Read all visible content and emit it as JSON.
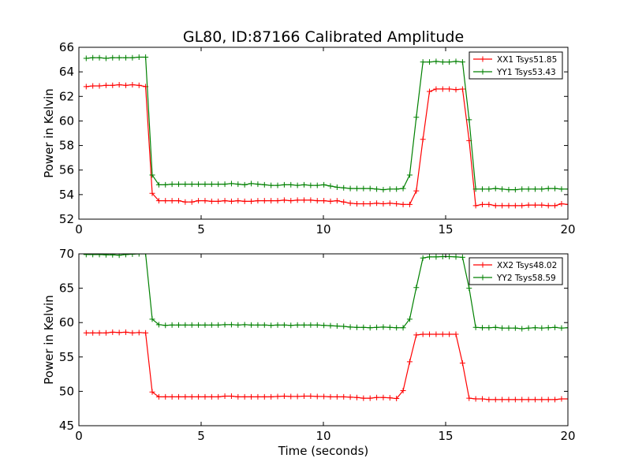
{
  "title": "GL80, ID:87166 Calibrated Amplitude",
  "xlabel": "Time (seconds)",
  "colors": {
    "red": "#ff0000",
    "green": "#008000"
  },
  "chart_data": [
    {
      "type": "line",
      "title": "GL80, ID:87166 Calibrated Amplitude",
      "xlabel": "",
      "ylabel": "Power in Kelvin",
      "xlim": [
        0,
        20
      ],
      "ylim": [
        52,
        66
      ],
      "xticks": [
        0,
        5,
        10,
        15,
        20
      ],
      "yticks": [
        52,
        54,
        56,
        58,
        60,
        62,
        64,
        66
      ],
      "grid": false,
      "legend": "top-right",
      "x": [
        0.3,
        0.57,
        0.84,
        1.11,
        1.38,
        1.65,
        1.92,
        2.19,
        2.46,
        2.73,
        3.0,
        3.27,
        3.54,
        3.81,
        4.08,
        4.35,
        4.62,
        4.89,
        5.16,
        5.43,
        5.7,
        5.97,
        6.24,
        6.51,
        6.78,
        7.05,
        7.32,
        7.59,
        7.86,
        8.13,
        8.4,
        8.67,
        8.94,
        9.21,
        9.48,
        9.75,
        10.02,
        10.29,
        10.56,
        10.83,
        11.1,
        11.37,
        11.64,
        11.91,
        12.18,
        12.45,
        12.72,
        12.99,
        13.26,
        13.53,
        13.8,
        14.07,
        14.34,
        14.61,
        14.88,
        15.15,
        15.42,
        15.69,
        15.96,
        16.23,
        16.5,
        16.77,
        17.04,
        17.31,
        17.58,
        17.85,
        18.12,
        18.39,
        18.66,
        18.93,
        19.2,
        19.47,
        19.74,
        20.0
      ],
      "series": [
        {
          "name": "XX1 Tsys51.85",
          "color": "#ff0000",
          "values": [
            62.8,
            62.85,
            62.85,
            62.9,
            62.9,
            62.95,
            62.9,
            62.95,
            62.9,
            62.8,
            54.1,
            53.5,
            53.5,
            53.5,
            53.5,
            53.4,
            53.4,
            53.5,
            53.5,
            53.45,
            53.45,
            53.5,
            53.45,
            53.5,
            53.45,
            53.45,
            53.5,
            53.5,
            53.5,
            53.5,
            53.55,
            53.5,
            53.55,
            53.55,
            53.55,
            53.5,
            53.5,
            53.45,
            53.5,
            53.4,
            53.3,
            53.25,
            53.25,
            53.25,
            53.3,
            53.25,
            53.3,
            53.25,
            53.2,
            53.2,
            54.3,
            58.5,
            62.4,
            62.6,
            62.6,
            62.6,
            62.55,
            62.6,
            58.4,
            53.1,
            53.2,
            53.2,
            53.1,
            53.1,
            53.1,
            53.1,
            53.1,
            53.15,
            53.15,
            53.15,
            53.1,
            53.1,
            53.25,
            53.2
          ]
        },
        {
          "name": "YY1 Tsys53.43",
          "color": "#008000",
          "values": [
            65.1,
            65.15,
            65.15,
            65.1,
            65.15,
            65.15,
            65.15,
            65.15,
            65.2,
            65.2,
            55.6,
            54.8,
            54.8,
            54.85,
            54.85,
            54.85,
            54.85,
            54.85,
            54.85,
            54.85,
            54.85,
            54.85,
            54.9,
            54.85,
            54.8,
            54.9,
            54.85,
            54.8,
            54.75,
            54.75,
            54.8,
            54.8,
            54.75,
            54.8,
            54.75,
            54.75,
            54.8,
            54.7,
            54.6,
            54.55,
            54.5,
            54.5,
            54.5,
            54.5,
            54.45,
            54.4,
            54.45,
            54.45,
            54.5,
            55.6,
            60.3,
            64.8,
            64.8,
            64.85,
            64.8,
            64.8,
            64.85,
            64.8,
            60.1,
            54.45,
            54.45,
            54.45,
            54.5,
            54.45,
            54.4,
            54.4,
            54.45,
            54.45,
            54.45,
            54.45,
            54.5,
            54.5,
            54.45,
            54.45
          ]
        }
      ]
    },
    {
      "type": "line",
      "xlabel": "Time (seconds)",
      "ylabel": "Power in Kelvin",
      "xlim": [
        0,
        20
      ],
      "ylim": [
        45,
        70
      ],
      "xticks": [
        0,
        5,
        10,
        15,
        20
      ],
      "yticks": [
        45,
        50,
        55,
        60,
        65,
        70
      ],
      "grid": false,
      "legend": "top-right",
      "x": [
        0.3,
        0.57,
        0.84,
        1.11,
        1.38,
        1.65,
        1.92,
        2.19,
        2.46,
        2.73,
        3.0,
        3.27,
        3.54,
        3.81,
        4.08,
        4.35,
        4.62,
        4.89,
        5.16,
        5.43,
        5.7,
        5.97,
        6.24,
        6.51,
        6.78,
        7.05,
        7.32,
        7.59,
        7.86,
        8.13,
        8.4,
        8.67,
        8.94,
        9.21,
        9.48,
        9.75,
        10.02,
        10.29,
        10.56,
        10.83,
        11.1,
        11.37,
        11.64,
        11.91,
        12.18,
        12.45,
        12.72,
        12.99,
        13.26,
        13.53,
        13.8,
        14.07,
        14.34,
        14.61,
        14.88,
        15.15,
        15.42,
        15.69,
        15.96,
        16.23,
        16.5,
        16.77,
        17.04,
        17.31,
        17.58,
        17.85,
        18.12,
        18.39,
        18.66,
        18.93,
        19.2,
        19.47,
        19.74,
        20.0
      ],
      "series": [
        {
          "name": "XX2 Tsys48.02",
          "color": "#ff0000",
          "values": [
            58.5,
            58.5,
            58.5,
            58.5,
            58.6,
            58.55,
            58.6,
            58.5,
            58.55,
            58.5,
            49.9,
            49.2,
            49.2,
            49.2,
            49.2,
            49.2,
            49.2,
            49.2,
            49.2,
            49.2,
            49.2,
            49.3,
            49.3,
            49.2,
            49.2,
            49.2,
            49.2,
            49.2,
            49.2,
            49.25,
            49.3,
            49.25,
            49.25,
            49.3,
            49.3,
            49.25,
            49.25,
            49.2,
            49.2,
            49.2,
            49.15,
            49.1,
            49.0,
            49.0,
            49.1,
            49.1,
            49.05,
            48.95,
            50.1,
            54.3,
            58.2,
            58.3,
            58.3,
            58.3,
            58.3,
            58.3,
            58.3,
            54.1,
            49.0,
            48.9,
            48.9,
            48.8,
            48.8,
            48.8,
            48.8,
            48.8,
            48.8,
            48.8,
            48.8,
            48.8,
            48.8,
            48.8,
            48.9,
            48.9
          ]
        },
        {
          "name": "YY2 Tsys58.59",
          "color": "#008000",
          "values": [
            69.9,
            69.9,
            69.9,
            69.85,
            69.85,
            69.8,
            69.9,
            69.95,
            70.0,
            70.0,
            60.5,
            59.7,
            59.6,
            59.65,
            59.65,
            59.65,
            59.65,
            59.65,
            59.65,
            59.65,
            59.65,
            59.7,
            59.7,
            59.65,
            59.7,
            59.65,
            59.65,
            59.65,
            59.6,
            59.65,
            59.65,
            59.6,
            59.65,
            59.65,
            59.65,
            59.65,
            59.6,
            59.55,
            59.5,
            59.45,
            59.35,
            59.3,
            59.3,
            59.25,
            59.3,
            59.35,
            59.3,
            59.25,
            59.25,
            60.5,
            65.1,
            69.4,
            69.55,
            69.55,
            69.6,
            69.6,
            69.55,
            69.5,
            65.0,
            59.3,
            59.25,
            59.25,
            59.3,
            59.2,
            59.2,
            59.2,
            59.1,
            59.2,
            59.25,
            59.2,
            59.25,
            59.3,
            59.2,
            59.25
          ]
        }
      ]
    }
  ]
}
